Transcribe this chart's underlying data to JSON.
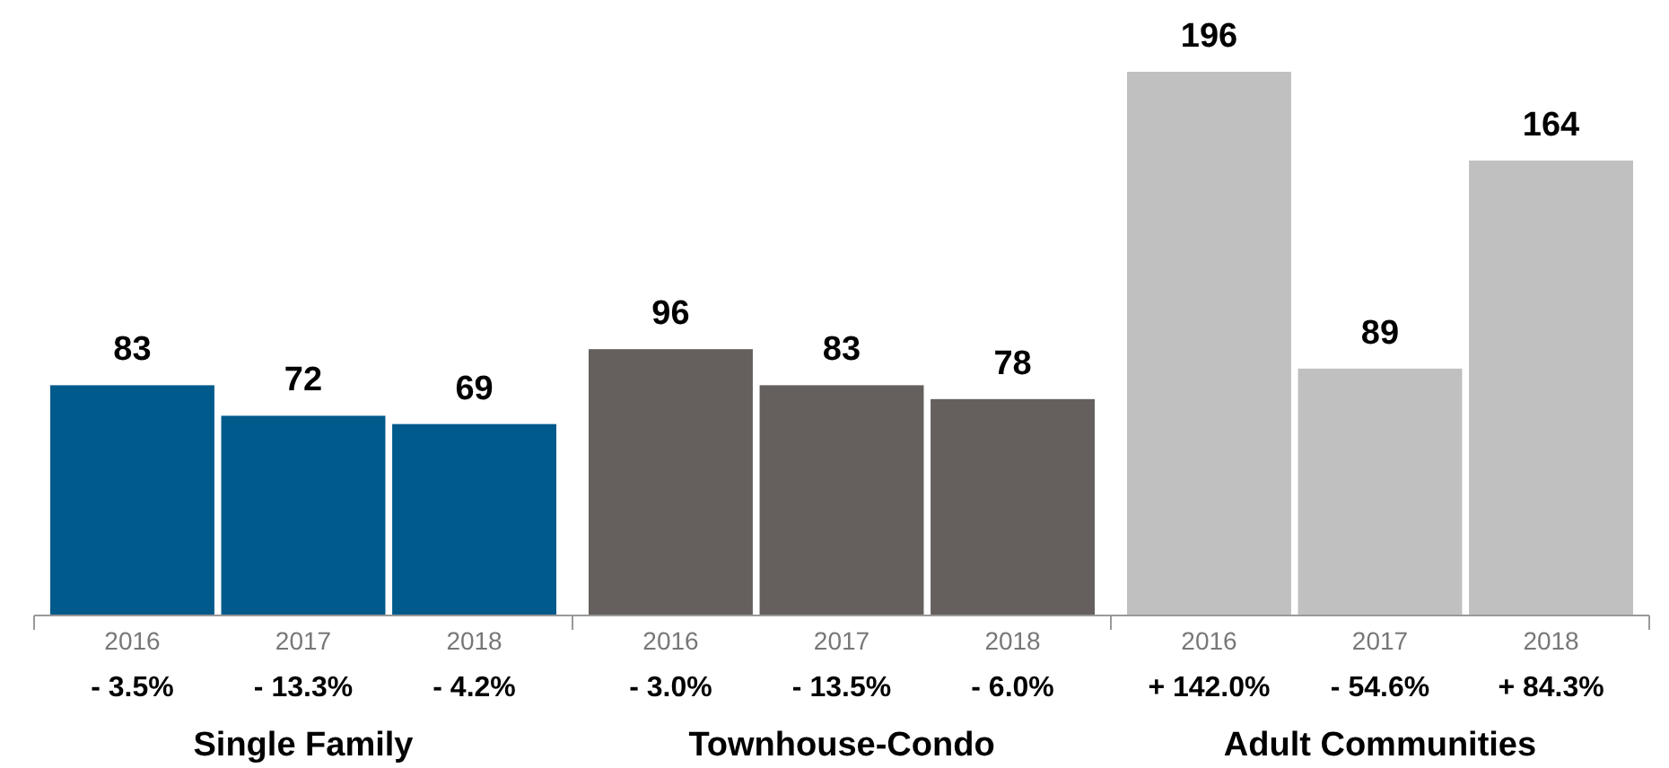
{
  "chart_data": [
    {
      "type": "bar",
      "categories": [
        "2016",
        "2017",
        "2018"
      ],
      "values": [
        83,
        72,
        69
      ],
      "color": "#005a8c",
      "data_labels": true,
      "xlabel": "Single Family",
      "annotations": [
        "- 3.5%",
        "- 13.3%",
        "- 4.2%"
      ]
    },
    {
      "type": "bar",
      "categories": [
        "2016",
        "2017",
        "2018"
      ],
      "values": [
        96,
        83,
        78
      ],
      "color": "#655f5e",
      "data_labels": true,
      "xlabel": "Townhouse-Condo",
      "annotations": [
        "- 3.0%",
        "- 13.5%",
        "- 6.0%"
      ]
    },
    {
      "type": "bar",
      "categories": [
        "2016",
        "2017",
        "2018"
      ],
      "values": [
        196,
        89,
        164
      ],
      "color": "#c0c0c0",
      "data_labels": true,
      "xlabel": "Adult Communities",
      "annotations": [
        "+ 142.0%",
        "- 54.6%",
        "+ 84.3%"
      ]
    }
  ]
}
